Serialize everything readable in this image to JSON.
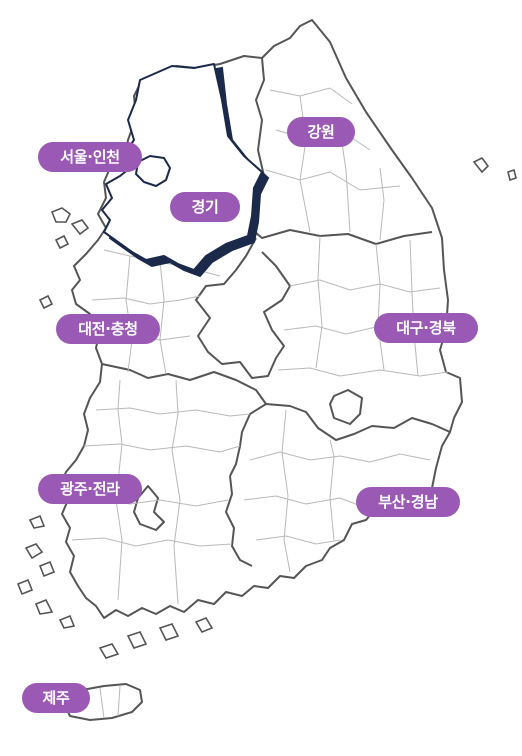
{
  "map": {
    "selected_region": "경기",
    "colors": {
      "label_bg": "#9b59b6",
      "label_text": "#ffffff",
      "selected_stroke": "#1b2a4a",
      "province_border": "#555555",
      "district_border": "#b8b8b8",
      "land_fill": "#ffffff"
    },
    "regions": [
      {
        "id": "seoul-incheon",
        "label": "서울·인천"
      },
      {
        "id": "gangwon",
        "label": "강원"
      },
      {
        "id": "gyeonggi",
        "label": "경기"
      },
      {
        "id": "daejeon-chungcheong",
        "label": "대전·충청"
      },
      {
        "id": "daegu-gyeongbuk",
        "label": "대구·경북"
      },
      {
        "id": "gwangju-jeolla",
        "label": "광주·전라"
      },
      {
        "id": "busan-gyeongnam",
        "label": "부산·경남"
      },
      {
        "id": "jeju",
        "label": "제주"
      }
    ]
  }
}
